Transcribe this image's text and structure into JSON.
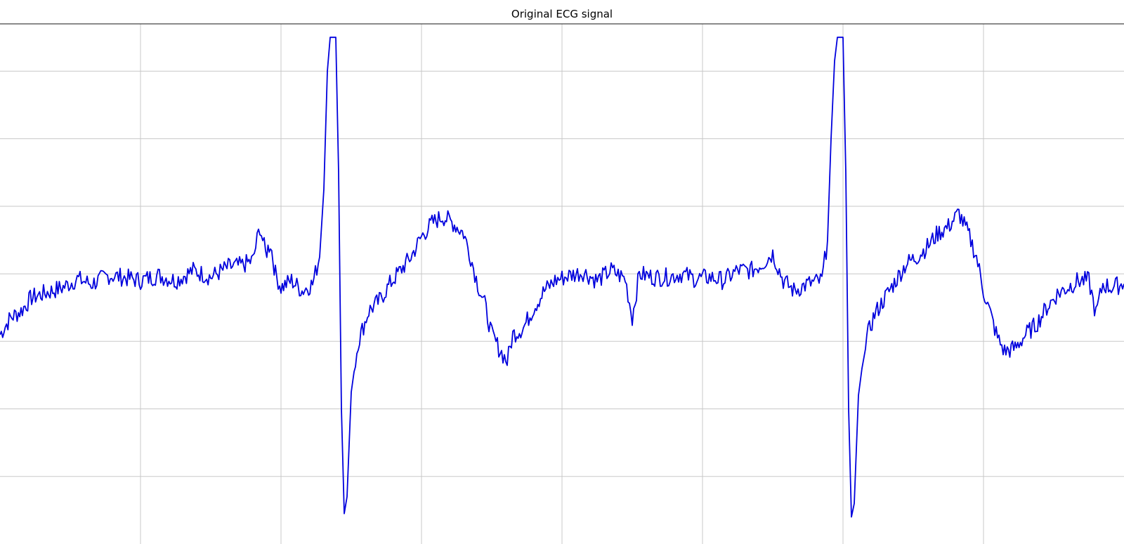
{
  "chart_data": {
    "type": "line",
    "title": "Original ECG signal",
    "xlabel": "",
    "ylabel": "",
    "x_range": [
      0,
      1600
    ],
    "y_range": [
      -8,
      7.4
    ],
    "grid": true,
    "legend": "none",
    "series": [
      {
        "color": "#0000dd",
        "points": [
          [
            0,
            -1.8
          ],
          [
            15,
            -1.3
          ],
          [
            30,
            -1.1
          ],
          [
            45,
            -0.7
          ],
          [
            60,
            -0.6
          ],
          [
            75,
            -0.5
          ],
          [
            90,
            -0.4
          ],
          [
            110,
            -0.15
          ],
          [
            130,
            -0.3
          ],
          [
            155,
            -0.05
          ],
          [
            175,
            -0.1
          ],
          [
            200,
            -0.2
          ],
          [
            225,
            -0.05
          ],
          [
            250,
            -0.2
          ],
          [
            275,
            0.1
          ],
          [
            300,
            -0.1
          ],
          [
            325,
            0.2
          ],
          [
            345,
            0.25
          ],
          [
            360,
            0.4
          ],
          [
            370,
            1.4
          ],
          [
            378,
            0.6
          ],
          [
            385,
            0.9
          ],
          [
            392,
            0.0
          ],
          [
            400,
            -0.4
          ],
          [
            415,
            -0.2
          ],
          [
            430,
            -0.5
          ],
          [
            445,
            -0.3
          ],
          [
            455,
            0.5
          ],
          [
            461,
            2.5
          ],
          [
            466,
            6.0
          ],
          [
            470,
            7.0
          ],
          [
            478,
            7.0
          ],
          [
            482,
            3.0
          ],
          [
            486,
            -4.0
          ],
          [
            490,
            -7.1
          ],
          [
            494,
            -6.6
          ],
          [
            500,
            -3.5
          ],
          [
            510,
            -2.0
          ],
          [
            525,
            -1.1
          ],
          [
            540,
            -0.8
          ],
          [
            555,
            -0.3
          ],
          [
            570,
            0.1
          ],
          [
            585,
            0.5
          ],
          [
            600,
            1.1
          ],
          [
            615,
            1.5
          ],
          [
            630,
            1.7
          ],
          [
            645,
            1.5
          ],
          [
            660,
            1.2
          ],
          [
            670,
            0.5
          ],
          [
            680,
            -0.3
          ],
          [
            690,
            -0.9
          ],
          [
            700,
            -1.8
          ],
          [
            710,
            -2.2
          ],
          [
            722,
            -2.6
          ],
          [
            730,
            -1.8
          ],
          [
            745,
            -1.6
          ],
          [
            760,
            -1.0
          ],
          [
            775,
            -0.5
          ],
          [
            790,
            -0.2
          ],
          [
            810,
            -0.05
          ],
          [
            830,
            0.05
          ],
          [
            850,
            -0.2
          ],
          [
            870,
            0.1
          ],
          [
            890,
            -0.15
          ],
          [
            900,
            -1.3
          ],
          [
            910,
            0.0
          ],
          [
            930,
            -0.1
          ],
          [
            950,
            -0.1
          ],
          [
            970,
            0.0
          ],
          [
            990,
            -0.15
          ],
          [
            1010,
            -0.1
          ],
          [
            1030,
            -0.2
          ],
          [
            1050,
            0.1
          ],
          [
            1070,
            0.1
          ],
          [
            1085,
            0.3
          ],
          [
            1100,
            0.6
          ],
          [
            1115,
            -0.2
          ],
          [
            1130,
            -0.5
          ],
          [
            1150,
            -0.3
          ],
          [
            1170,
            -0.2
          ],
          [
            1178,
            1.0
          ],
          [
            1183,
            4.0
          ],
          [
            1188,
            6.3
          ],
          [
            1192,
            7.0
          ],
          [
            1200,
            7.0
          ],
          [
            1204,
            3.0
          ],
          [
            1208,
            -4.0
          ],
          [
            1212,
            -7.2
          ],
          [
            1216,
            -6.8
          ],
          [
            1222,
            -3.6
          ],
          [
            1232,
            -2.0
          ],
          [
            1245,
            -1.2
          ],
          [
            1260,
            -0.7
          ],
          [
            1275,
            -0.2
          ],
          [
            1290,
            0.3
          ],
          [
            1305,
            0.5
          ],
          [
            1320,
            0.8
          ],
          [
            1335,
            1.2
          ],
          [
            1350,
            1.4
          ],
          [
            1365,
            1.8
          ],
          [
            1380,
            1.1
          ],
          [
            1390,
            0.5
          ],
          [
            1400,
            -0.5
          ],
          [
            1410,
            -1.2
          ],
          [
            1420,
            -1.9
          ],
          [
            1430,
            -2.3
          ],
          [
            1445,
            -2.2
          ],
          [
            1460,
            -1.8
          ],
          [
            1475,
            -1.5
          ],
          [
            1490,
            -1.0
          ],
          [
            1505,
            -0.6
          ],
          [
            1520,
            -0.4
          ],
          [
            1535,
            -0.2
          ],
          [
            1550,
            -0.2
          ],
          [
            1560,
            -1.2
          ],
          [
            1570,
            -0.3
          ],
          [
            1580,
            -0.4
          ],
          [
            1600,
            -0.3
          ]
        ]
      }
    ]
  }
}
